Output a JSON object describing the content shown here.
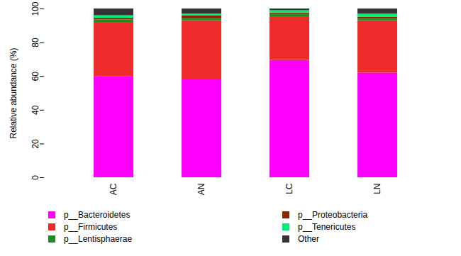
{
  "chart_data": {
    "type": "bar",
    "stacked": true,
    "ylabel": "Relative abundance (%)",
    "categories": [
      "AC",
      "AN",
      "LC",
      "LN"
    ],
    "ylim": [
      0,
      100
    ],
    "yticks": [
      0,
      20,
      40,
      60,
      80,
      100
    ],
    "legend": "bottom",
    "series": [
      {
        "name": "p__Bacteroidetes",
        "color": "#ff00ff",
        "values": [
          60,
          58,
          69.5,
          62
        ]
      },
      {
        "name": "p__Firmicutes",
        "color": "#ee2c2c",
        "values": [
          32,
          35,
          25.5,
          31
        ]
      },
      {
        "name": "p__Lentisphaerae",
        "color": "#228b22",
        "values": [
          1.5,
          1.5,
          2,
          1.5
        ]
      },
      {
        "name": "p__Proteobacteria",
        "color": "#8b2500",
        "values": [
          1,
          1.5,
          0.5,
          0.5
        ]
      },
      {
        "name": "p__Tenericutes",
        "color": "#00ee76",
        "values": [
          1.5,
          1,
          1.5,
          2
        ]
      },
      {
        "name": "Other",
        "color": "#333333",
        "values": [
          4,
          3,
          1,
          3
        ]
      }
    ]
  }
}
